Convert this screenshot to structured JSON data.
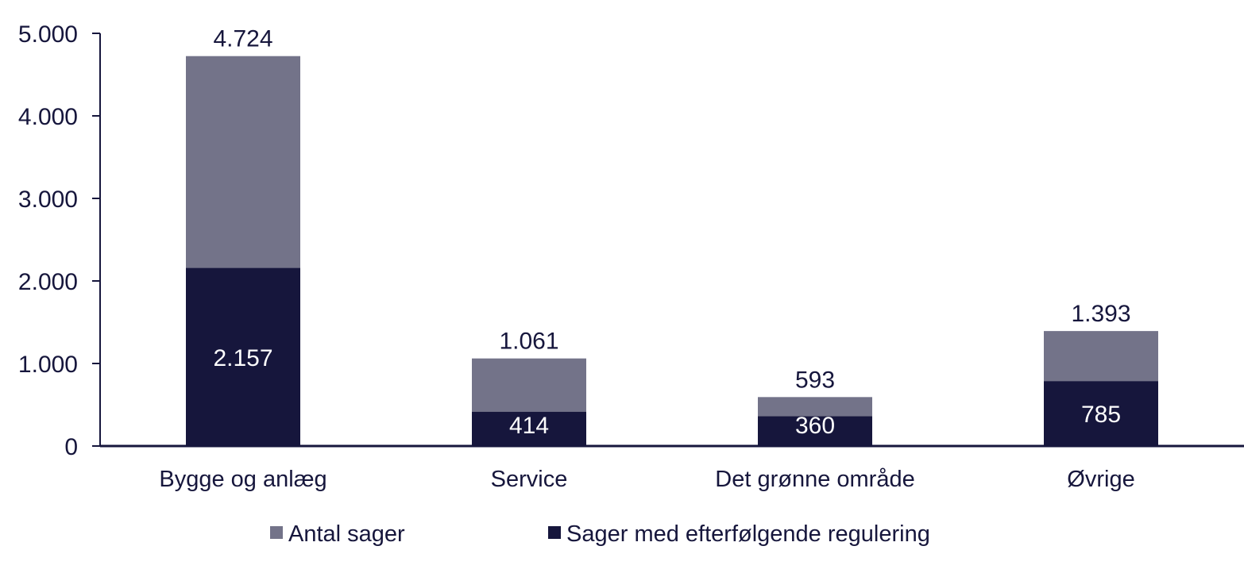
{
  "chart_data": {
    "type": "bar",
    "mode": "overlapping",
    "title": "",
    "xlabel": "",
    "ylabel": "",
    "categories": [
      "Bygge og anlæg",
      "Service",
      "Det grønne område",
      "Øvrige"
    ],
    "series": [
      {
        "name": "Antal sager",
        "color": "#737389",
        "values": [
          4724,
          1061,
          593,
          1393
        ],
        "labels": [
          "4.724",
          "1.061",
          "593",
          "1.393"
        ]
      },
      {
        "name": "Sager med efterfølgende regulering",
        "color": "#16163c",
        "values": [
          2157,
          414,
          360,
          785
        ],
        "labels": [
          "2.157",
          "414",
          "360",
          "785"
        ]
      }
    ],
    "ylim": [
      0,
      5000
    ],
    "yticks": [
      0,
      1000,
      2000,
      3000,
      4000,
      5000
    ],
    "ytick_labels": [
      "0",
      "1.000",
      "2.000",
      "3.000",
      "4.000",
      "5.000"
    ],
    "grid": false,
    "legend": "bottom-center"
  }
}
